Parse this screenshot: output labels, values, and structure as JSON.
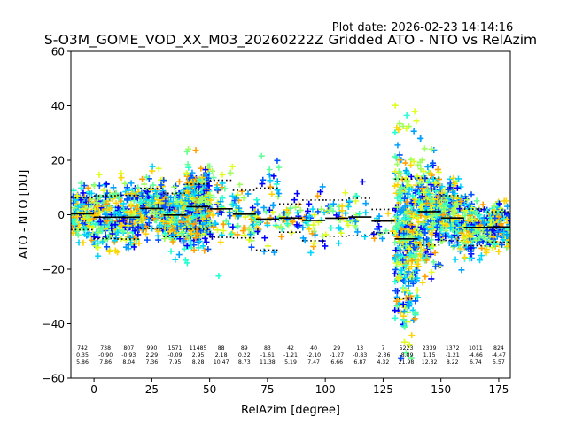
{
  "chart_data": {
    "type": "scatter",
    "plot_date_label": "Plot date: 2026-02-23 14:14:16",
    "title": "S-O3M_GOME_VOD_XX_M03_20260222Z Gridded ATO - NTO vs RelAzim",
    "xlabel": "RelAzim [degree]",
    "ylabel": "ATO - NTO [DU]",
    "xlim": [
      -10,
      180
    ],
    "ylim": [
      -60,
      60
    ],
    "xticks": [
      0,
      25,
      50,
      75,
      100,
      125,
      150,
      175
    ],
    "yticks": [
      -60,
      -40,
      -20,
      0,
      20,
      40,
      60
    ],
    "bin_width": 10,
    "bins": [
      {
        "center": -5,
        "count": "742",
        "mean": "0.35",
        "std": "5.86",
        "mean_val": 0.35,
        "std_val": 5.86
      },
      {
        "center": 5,
        "count": "738",
        "mean": "-0.90",
        "std": "7.86",
        "mean_val": -0.9,
        "std_val": 7.86
      },
      {
        "center": 15,
        "count": "807",
        "mean": "-0.93",
        "std": "8.04",
        "mean_val": -0.93,
        "std_val": 8.04
      },
      {
        "center": 25,
        "count": "990",
        "mean": "2.29",
        "std": "7.36",
        "mean_val": 2.29,
        "std_val": 7.36
      },
      {
        "center": 35,
        "count": "1571",
        "mean": "-0.09",
        "std": "7.95",
        "mean_val": -0.09,
        "std_val": 7.95
      },
      {
        "center": 45,
        "count": "11485",
        "mean": "2.95",
        "std": "8.28",
        "mean_val": 2.95,
        "std_val": 8.28
      },
      {
        "center": 55,
        "count": "88",
        "mean": "2.18",
        "std": "10.47",
        "mean_val": 2.18,
        "std_val": 10.47
      },
      {
        "center": 65,
        "count": "89",
        "mean": "0.22",
        "std": "8.73",
        "mean_val": 0.22,
        "std_val": 8.73
      },
      {
        "center": 75,
        "count": "83",
        "mean": "-1.61",
        "std": "11.38",
        "mean_val": -1.61,
        "std_val": 11.38
      },
      {
        "center": 85,
        "count": "42",
        "mean": "-1.21",
        "std": "5.19",
        "mean_val": -1.21,
        "std_val": 5.19
      },
      {
        "center": 95,
        "count": "40",
        "mean": "-2.10",
        "std": "7.47",
        "mean_val": -2.1,
        "std_val": 7.47
      },
      {
        "center": 105,
        "count": "29",
        "mean": "-1.27",
        "std": "6.66",
        "mean_val": -1.27,
        "std_val": 6.66
      },
      {
        "center": 115,
        "count": "13",
        "mean": "-0.83",
        "std": "6.87",
        "mean_val": -0.83,
        "std_val": 6.87
      },
      {
        "center": 125,
        "count": "7",
        "mean": "-2.36",
        "std": "4.32",
        "mean_val": -2.36,
        "std_val": 4.32
      },
      {
        "center": 135,
        "count": "5223",
        "mean": "-8.89",
        "std": "21.98",
        "mean_val": -8.89,
        "std_val": 21.98
      },
      {
        "center": 145,
        "count": "2339",
        "mean": "1.15",
        "std": "12.32",
        "mean_val": 1.15,
        "std_val": 12.32
      },
      {
        "center": 155,
        "count": "1372",
        "mean": "-1.21",
        "std": "8.22",
        "mean_val": -1.21,
        "std_val": 8.22
      },
      {
        "center": 165,
        "count": "1011",
        "mean": "-4.66",
        "std": "6.74",
        "mean_val": -4.66,
        "std_val": 6.74
      },
      {
        "center": 175,
        "count": "824",
        "mean": "-4.47",
        "std": "5.57",
        "mean_val": -4.47,
        "std_val": 5.57
      }
    ],
    "colors": {
      "mean_line": "#000000",
      "std_line": "#000000",
      "palette": [
        "#0000ff",
        "#0050ff",
        "#00a0ff",
        "#00d4ff",
        "#28ffd0",
        "#60ff98",
        "#a0ff60",
        "#e0ff20",
        "#ffd400",
        "#ffa000"
      ]
    }
  }
}
